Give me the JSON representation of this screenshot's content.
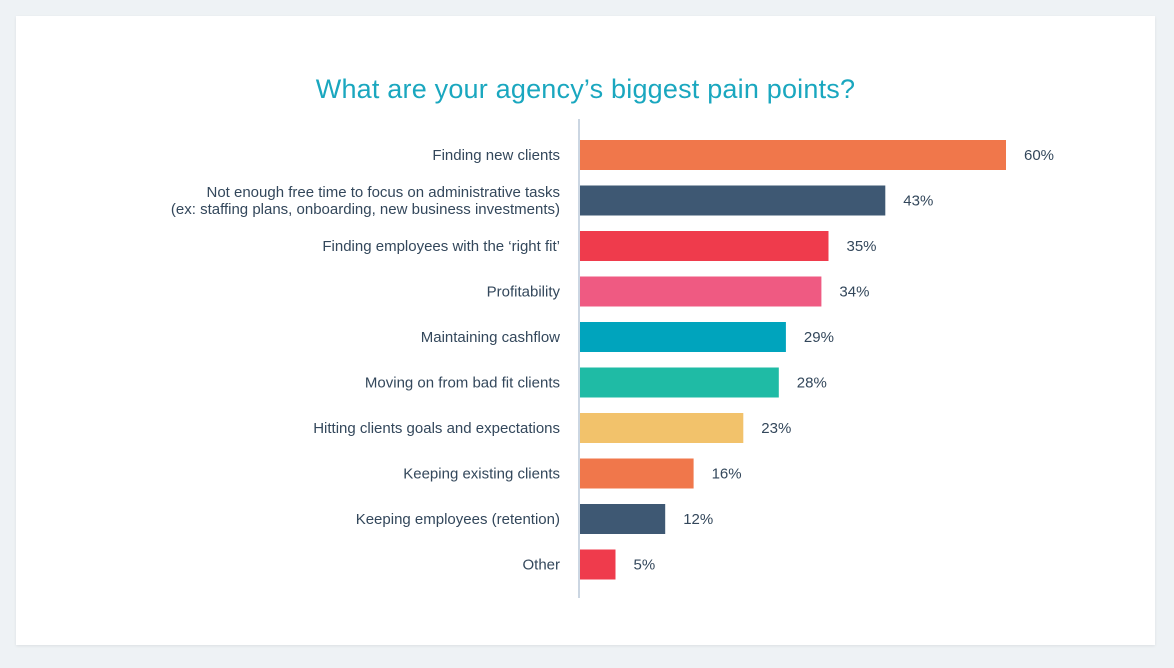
{
  "chart_data": {
    "type": "bar",
    "orientation": "horizontal",
    "title": "What are your agency’s biggest pain points?",
    "categories": [
      [
        "Finding new clients"
      ],
      [
        "Not enough free time to focus on administrative tasks",
        "(ex: staffing plans, onboarding, new business investments)"
      ],
      [
        "Finding employees with the ‘right fit’"
      ],
      [
        "Profitability"
      ],
      [
        "Maintaining cashflow"
      ],
      [
        "Moving on from bad fit clients"
      ],
      [
        "Hitting clients goals and expectations"
      ],
      [
        "Keeping existing clients"
      ],
      [
        "Keeping employees (retention)"
      ],
      [
        "Other"
      ]
    ],
    "values": [
      60,
      43,
      35,
      34,
      29,
      28,
      23,
      16,
      12,
      5
    ],
    "value_labels": [
      "60%",
      "43%",
      "35%",
      "34%",
      "29%",
      "28%",
      "23%",
      "16%",
      "12%",
      "5%"
    ],
    "colors": [
      "#f0774b",
      "#3e5873",
      "#ef3b4c",
      "#ef5a82",
      "#00a4bd",
      "#1fbba5",
      "#f2c26b",
      "#f0774b",
      "#3e5873",
      "#ef3b4c"
    ],
    "xlim": [
      0,
      60
    ],
    "grid": false,
    "legend": "none"
  },
  "styles": {
    "title_color": "#1aa7bf",
    "axis_color": "#cbd6e2",
    "text_color": "#33475b"
  }
}
